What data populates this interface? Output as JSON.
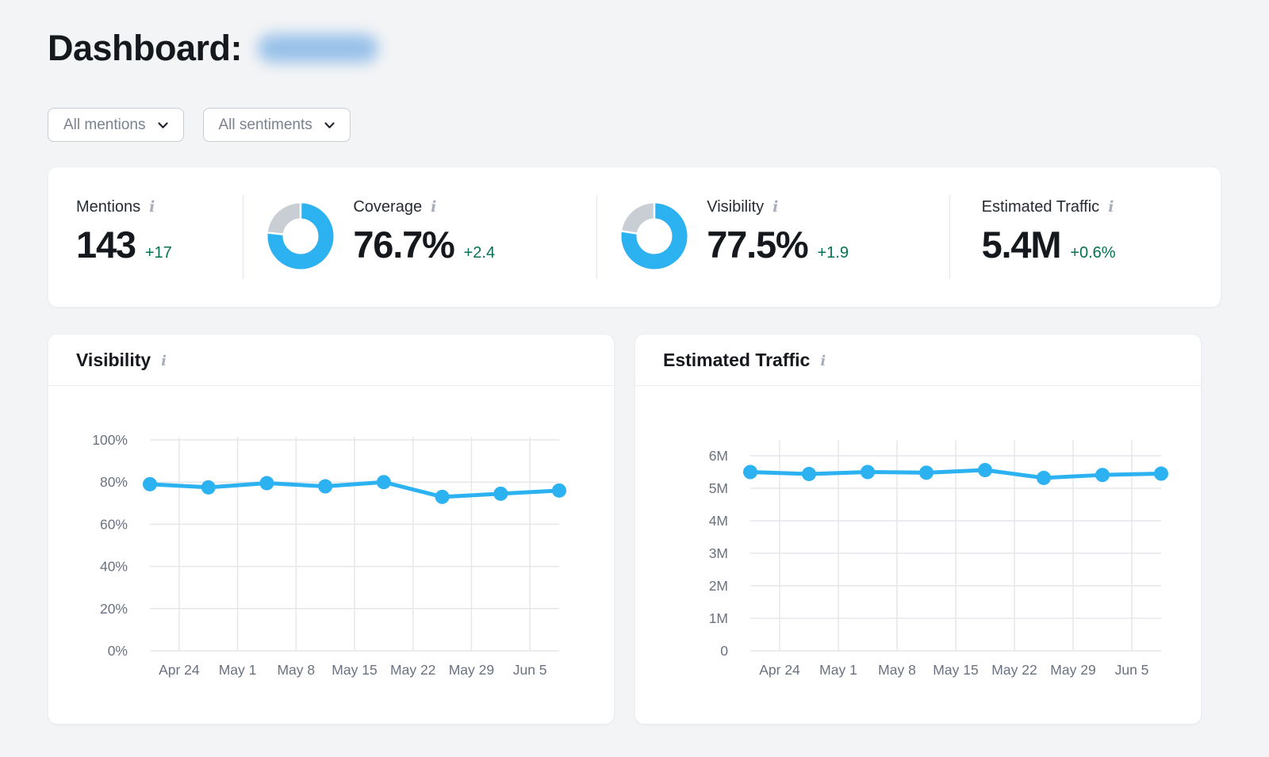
{
  "header": {
    "title": "Dashboard:",
    "project_name_redacted": true
  },
  "filters": {
    "mentions": {
      "label": "All mentions"
    },
    "sentiments": {
      "label": "All sentiments"
    }
  },
  "stats": {
    "mentions": {
      "label": "Mentions",
      "value": "143",
      "delta": "+17"
    },
    "coverage": {
      "label": "Coverage",
      "value": "76.7%",
      "delta": "+2.4",
      "percent": 76.7
    },
    "visibility": {
      "label": "Visibility",
      "value": "77.5%",
      "delta": "+1.9",
      "percent": 77.5
    },
    "traffic": {
      "label": "Estimated Traffic",
      "value": "5.4M",
      "delta": "+0.6%"
    }
  },
  "colors": {
    "accent_blue": "#2CB1F1",
    "positive_green": "#067052",
    "donut_rest_gray": "#C9CDD4",
    "grid_gray": "#E5E7EB",
    "axis_text_gray": "#6A7180"
  },
  "chart_data": [
    {
      "id": "visibility",
      "type": "line",
      "title": "Visibility",
      "xlabel": "",
      "ylabel": "",
      "x_axis_labels": [
        "Apr 24",
        "May 1",
        "May 8",
        "May 15",
        "May 22",
        "May 29",
        "Jun 5"
      ],
      "series": [
        {
          "name": "Visibility %",
          "values": [
            79,
            77.5,
            79.5,
            78,
            80,
            73,
            74.5,
            76
          ]
        }
      ],
      "points_note": "8 weekly data points; the 7 x-axis labels sit on the gridline boundaries between points",
      "ylim": [
        0,
        100
      ],
      "ytick_values": [
        0,
        20,
        40,
        60,
        80,
        100
      ],
      "ytick_labels": [
        "0%",
        "20%",
        "40%",
        "60%",
        "80%",
        "100%"
      ],
      "grid": true,
      "legend": false
    },
    {
      "id": "traffic",
      "type": "line",
      "title": "Estimated Traffic",
      "xlabel": "",
      "ylabel": "",
      "x_axis_labels": [
        "Apr 24",
        "May 1",
        "May 8",
        "May 15",
        "May 22",
        "May 29",
        "Jun 5"
      ],
      "series": [
        {
          "name": "Estimated Traffic (millions)",
          "values": [
            5.5,
            5.44,
            5.5,
            5.48,
            5.56,
            5.32,
            5.41,
            5.45
          ]
        }
      ],
      "points_note": "8 weekly data points; values in millions of visits",
      "ylim": [
        0,
        6
      ],
      "ytick_values": [
        0,
        1,
        2,
        3,
        4,
        5,
        6
      ],
      "ytick_labels": [
        "0",
        "1M",
        "2M",
        "3M",
        "4M",
        "5M",
        "6M"
      ],
      "grid": true,
      "legend": false
    }
  ]
}
